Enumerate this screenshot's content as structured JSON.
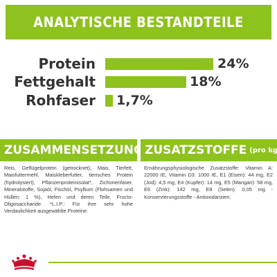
{
  "banner": {
    "title": "ANALYTISCHE BESTANDTEILE"
  },
  "analysis": [
    {
      "label": "Protein",
      "value": "24%",
      "percent": 24
    },
    {
      "label": "Fettgehalt",
      "value": "18%",
      "percent": 18
    },
    {
      "label": "Rohfaser",
      "value": "1,7%",
      "percent": 1.7
    }
  ],
  "composition": {
    "title": "ZUSAMMENSETZUNG",
    "text": "Reis, Geflügelprotein (getrocknet), Mais, Tierfett, Maisfuttermehl, Maiskleberfutter, tierisches Protein (hydrolysiert), Pflanzenproteinisolat*, Zichorienfaser, Mineralstoffe, Sojaöl, Fischöl, Psyllium (Flohsamen und Hüllen: 1 %), Hefen und deren Teile, Fructo-Oligosaccharide. *L.I.P.: Für ihre sehr hohe Verdaulichkeit ausgewählte Proteine."
  },
  "additives": {
    "title": "ZUSATZSTOFFE",
    "unit": "(pro kg)",
    "text": "Ernährungsphysiologische Zusatzstoffe: Vitamin A: 22000 IE, Vitamin D3: 1000 IE, E1 (Eisen): 44 mg, E2 (Jod): 4,5 mg, E4 (Kupfer): 14 mg, E5 (Mangan): 58 mg, E6 (Zink): 142 mg, E8 (Selen): 0,05 mg - Konservierungsstoffe - Antioxidanzien."
  },
  "colors": {
    "accent": "#8dc21f",
    "logo": "#c8102e"
  },
  "icons": {
    "logo": "crown-logo-icon"
  }
}
